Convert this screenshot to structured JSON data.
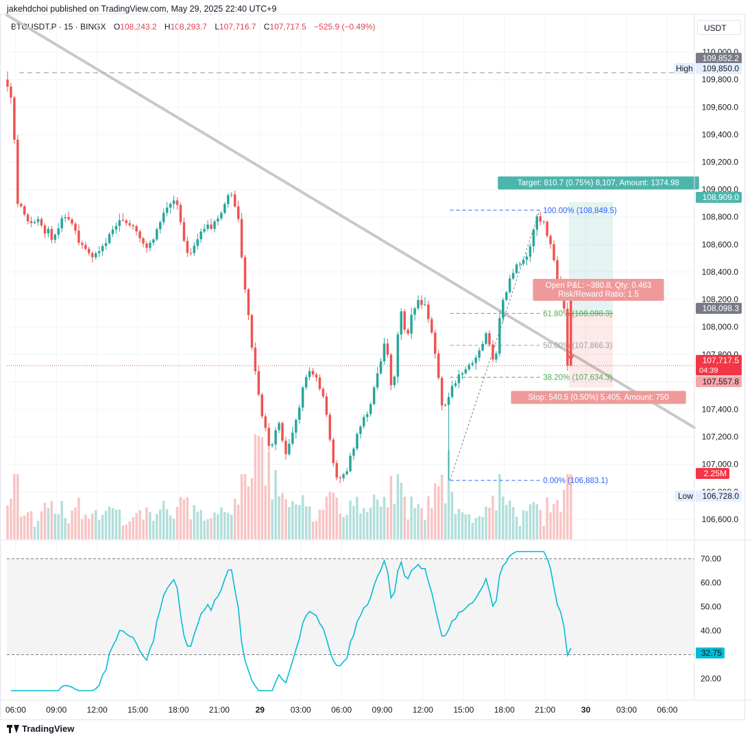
{
  "header": {
    "publisher_line": "jakehdchoi published on TradingView.com, May 29, 2025 22:40 UTC+9"
  },
  "legend": {
    "symbol": "BTCUSDT.P · 15 · BINGX",
    "open_label": "O",
    "open": "108,243.2",
    "high_label": "H",
    "high": "108,293.7",
    "low_label": "L",
    "low": "107,716.7",
    "close_label": "C",
    "close": "107,717.5",
    "change": "−525.9 (−0.49%)"
  },
  "currency": "USDT",
  "footer": {
    "brand": "TradingView"
  },
  "colors": {
    "up": "#26a69a",
    "down": "#ef5350",
    "up_volume": "#b2dfdb",
    "down_volume": "#f8c4c4",
    "rsi_line": "#00bcd4",
    "fib_blue": "#2962ff",
    "fib_green": "#4caf50",
    "fib_gray": "#9e9e9e",
    "trendline": "#c8c8c8"
  },
  "chart_data": [
    {
      "type": "candlestick",
      "symbol": "BTCUSDT.P",
      "interval": "15",
      "exchange": "BINGX",
      "ylim": [
        106450,
        110100
      ],
      "y_ticks": [
        106600,
        106800,
        107000,
        107200,
        107400,
        107600,
        107800,
        108000,
        108200,
        108400,
        108600,
        108800,
        109000,
        109200,
        109400,
        109600,
        109800,
        110000
      ],
      "y_tick_labels": [
        "106,600.0",
        "106,800.0",
        "107,000.0",
        "107,200.0",
        "107,400.0",
        "107,600.0",
        "107,800.0",
        "108,000.0",
        "108,200.0",
        "108,400.0",
        "108,600.0",
        "108,800.0",
        "109,000.0",
        "109,200.0",
        "109,400.0",
        "109,600.0",
        "109,800.0",
        "110,000.0"
      ],
      "x_ticks": [
        {
          "label": "06:00",
          "hour": 6
        },
        {
          "label": "09:00",
          "hour": 9
        },
        {
          "label": "12:00",
          "hour": 12
        },
        {
          "label": "15:00",
          "hour": 15
        },
        {
          "label": "18:00",
          "hour": 18
        },
        {
          "label": "21:00",
          "hour": 21
        },
        {
          "label": "29",
          "hour": 24,
          "bold": true
        },
        {
          "label": "03:00",
          "hour": 27
        },
        {
          "label": "06:00",
          "hour": 30
        },
        {
          "label": "09:00",
          "hour": 33
        },
        {
          "label": "12:00",
          "hour": 36
        },
        {
          "label": "15:00",
          "hour": 39
        },
        {
          "label": "18:00",
          "hour": 42
        },
        {
          "label": "21:00",
          "hour": 45
        },
        {
          "label": "30",
          "hour": 48,
          "bold": true
        },
        {
          "label": "03:00",
          "hour": 51
        },
        {
          "label": "06:00",
          "hour": 54
        }
      ],
      "x_range_hours": [
        5.35,
        56
      ],
      "bar_interval_hours": 0.25,
      "last_bar_hour": 46.9,
      "anchors": [
        {
          "h": 5.4,
          "p": 109800
        },
        {
          "h": 6.0,
          "p": 109650
        },
        {
          "h": 6.4,
          "p": 108900
        },
        {
          "h": 7.0,
          "p": 108800
        },
        {
          "h": 8.0,
          "p": 108750
        },
        {
          "h": 9.0,
          "p": 108650
        },
        {
          "h": 10.0,
          "p": 108850
        },
        {
          "h": 11.0,
          "p": 108600
        },
        {
          "h": 12.0,
          "p": 108500
        },
        {
          "h": 13.0,
          "p": 108650
        },
        {
          "h": 14.0,
          "p": 108800
        },
        {
          "h": 15.0,
          "p": 108700
        },
        {
          "h": 16.0,
          "p": 108550
        },
        {
          "h": 17.0,
          "p": 108800
        },
        {
          "h": 18.0,
          "p": 108950
        },
        {
          "h": 19.0,
          "p": 108500
        },
        {
          "h": 20.0,
          "p": 108700
        },
        {
          "h": 21.0,
          "p": 108750
        },
        {
          "h": 22.0,
          "p": 108950
        },
        {
          "h": 22.6,
          "p": 108850
        },
        {
          "h": 23.0,
          "p": 108400
        },
        {
          "h": 23.6,
          "p": 107900
        },
        {
          "h": 24.3,
          "p": 107400
        },
        {
          "h": 25.0,
          "p": 107100
        },
        {
          "h": 25.6,
          "p": 107300
        },
        {
          "h": 26.2,
          "p": 107050
        },
        {
          "h": 27.0,
          "p": 107350
        },
        {
          "h": 27.5,
          "p": 107600
        },
        {
          "h": 28.0,
          "p": 107700
        },
        {
          "h": 29.0,
          "p": 107500
        },
        {
          "h": 29.5,
          "p": 107100
        },
        {
          "h": 30.0,
          "p": 106850
        },
        {
          "h": 30.8,
          "p": 107000
        },
        {
          "h": 31.5,
          "p": 107250
        },
        {
          "h": 32.3,
          "p": 107400
        },
        {
          "h": 33.0,
          "p": 107700
        },
        {
          "h": 33.5,
          "p": 107900
        },
        {
          "h": 34.0,
          "p": 107500
        },
        {
          "h": 34.6,
          "p": 108150
        },
        {
          "h": 35.0,
          "p": 107900
        },
        {
          "h": 35.8,
          "p": 108200
        },
        {
          "h": 36.5,
          "p": 108150
        },
        {
          "h": 37.0,
          "p": 107900
        },
        {
          "h": 37.6,
          "p": 107450
        },
        {
          "h": 38.0,
          "p": 107400
        },
        {
          "h": 38.5,
          "p": 107600
        },
        {
          "h": 39.0,
          "p": 107650
        },
        {
          "h": 40.0,
          "p": 107750
        },
        {
          "h": 41.0,
          "p": 107950
        },
        {
          "h": 41.5,
          "p": 107700
        },
        {
          "h": 42.0,
          "p": 108150
        },
        {
          "h": 43.0,
          "p": 108450
        },
        {
          "h": 44.0,
          "p": 108500
        },
        {
          "h": 44.6,
          "p": 108800
        },
        {
          "h": 45.2,
          "p": 108750
        },
        {
          "h": 45.8,
          "p": 108550
        },
        {
          "h": 46.2,
          "p": 108300
        },
        {
          "h": 46.6,
          "p": 108243.2
        },
        {
          "h": 46.9,
          "p": 107717.5
        }
      ],
      "shocks": [
        {
          "h": 38.0,
          "low": 106883.1
        }
      ],
      "last_candle": {
        "o": 108243.2,
        "h": 108293.7,
        "l": 107716.7,
        "c": 107717.5
      },
      "session_high": 109850.0,
      "session_low": 106728.0
    },
    {
      "type": "area",
      "name": "Volume",
      "relative_heights": "shown as bars under price, scaled to max",
      "last_value": "2.25M"
    },
    {
      "type": "line",
      "name": "RSI",
      "ylim": [
        15,
        73
      ],
      "y_ticks": [
        20,
        30,
        40,
        50,
        60,
        70
      ],
      "y_tick_labels": [
        "20.00",
        "30.00",
        "40.00",
        "50.00",
        "60.00",
        "70.00"
      ],
      "upper_band": 70,
      "lower_band": 30,
      "last_value": "32.75"
    }
  ],
  "price_labels": {
    "high_tag": "109,852.2",
    "high_label": "High",
    "high_value": "109,850.0",
    "low_label": "Low",
    "low_value": "106,728.0",
    "target_price": "108,909.0",
    "entry_price": "108,098.3",
    "last_price": "107,717.5",
    "countdown": "04:39",
    "stop_price": "107,557.8",
    "volume_value": "2.25M",
    "rsi_value": "32.75"
  },
  "position": {
    "target_text": "Target: 810.7 (0.75%) 8,107, Amount: 1374.98",
    "pnl_text": "Open P&L: −380.8, Qty: 0.463",
    "rr_text": "Risk/Reward Ratio: 1.5",
    "stop_text": "Stop: 540.5 (0.50%) 5,405, Amount: 750",
    "entry": 108098.3,
    "target": 108909.0,
    "stop": 107557.8
  },
  "fibonacci": [
    {
      "label": "100.00% (108,849.5)",
      "price": 108849.5,
      "color_key": "fib_blue"
    },
    {
      "label": "61.80% (108,098.3)",
      "price": 108098.3,
      "color_key": "fib_green"
    },
    {
      "label": "50.00% (107,866.3)",
      "price": 107866.3,
      "color_key": "fib_gray"
    },
    {
      "label": "38.20% (107,634.3)",
      "price": 107634.3,
      "color_key": "fib_green"
    },
    {
      "label": "0.00% (106,883.1)",
      "price": 106883.1,
      "color_key": "fib_blue"
    }
  ]
}
